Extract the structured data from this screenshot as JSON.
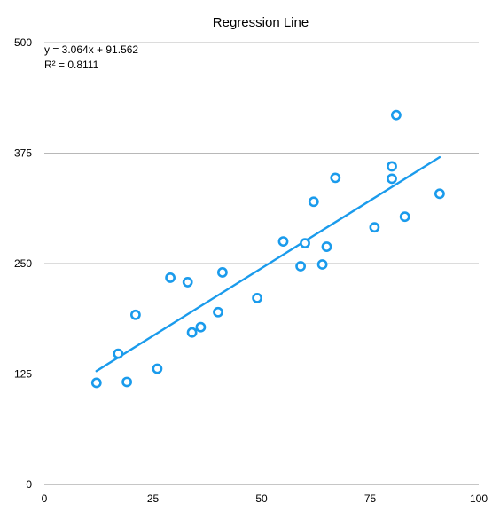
{
  "chart_data": {
    "type": "scatter",
    "title": "Regression Line",
    "xlabel": "",
    "ylabel": "",
    "xlim": [
      0,
      100
    ],
    "ylim": [
      0,
      500
    ],
    "x_ticks": [
      0,
      25,
      50,
      75,
      100
    ],
    "y_ticks": [
      0,
      125,
      250,
      375,
      500
    ],
    "x_tick_labels": [
      "0",
      "25",
      "50",
      "75",
      "100"
    ],
    "y_tick_labels": [
      "0",
      "125",
      "250",
      "375",
      "500"
    ],
    "grid": "horizontal",
    "legend": "none",
    "points_color": "#1a9bec",
    "trendline_color": "#1a9bec",
    "points": [
      {
        "x": 12,
        "y": 115
      },
      {
        "x": 17,
        "y": 148
      },
      {
        "x": 19,
        "y": 116
      },
      {
        "x": 21,
        "y": 192
      },
      {
        "x": 26,
        "y": 131
      },
      {
        "x": 29,
        "y": 234
      },
      {
        "x": 33,
        "y": 229
      },
      {
        "x": 34,
        "y": 172
      },
      {
        "x": 36,
        "y": 178
      },
      {
        "x": 40,
        "y": 195
      },
      {
        "x": 41,
        "y": 240
      },
      {
        "x": 49,
        "y": 211
      },
      {
        "x": 55,
        "y": 275
      },
      {
        "x": 59,
        "y": 247
      },
      {
        "x": 60,
        "y": 273
      },
      {
        "x": 62,
        "y": 320
      },
      {
        "x": 64,
        "y": 249
      },
      {
        "x": 65,
        "y": 269
      },
      {
        "x": 67,
        "y": 347
      },
      {
        "x": 76,
        "y": 291
      },
      {
        "x": 80,
        "y": 346
      },
      {
        "x": 80,
        "y": 360
      },
      {
        "x": 81,
        "y": 418
      },
      {
        "x": 83,
        "y": 303
      },
      {
        "x": 91,
        "y": 329
      }
    ],
    "trendline": {
      "type": "linear",
      "slope": 3.064,
      "intercept": 91.562,
      "x_range": [
        12,
        91
      ]
    },
    "annotations": [
      "y = 3.064x + 91.562",
      "R² = 0.8111"
    ]
  }
}
